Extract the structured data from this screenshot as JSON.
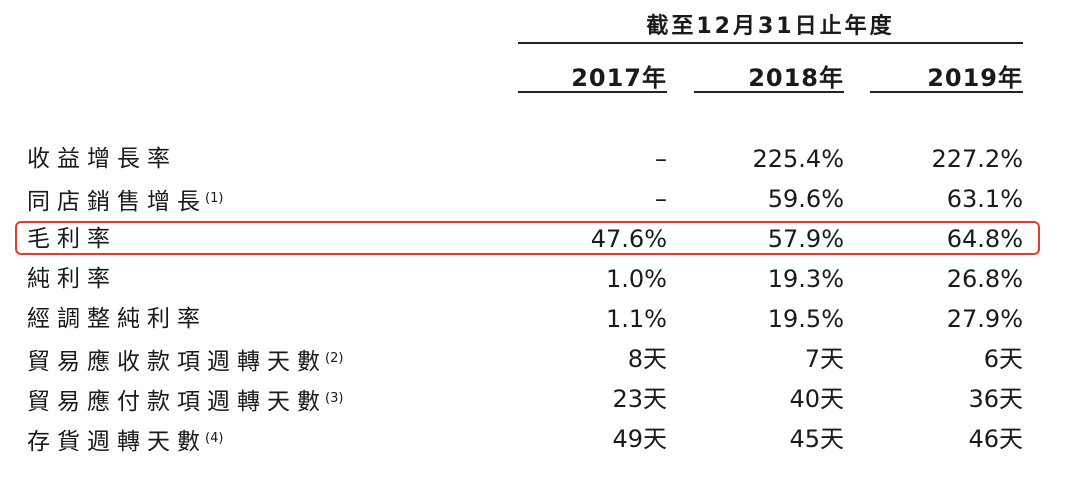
{
  "header": {
    "period": "截至12月31日止年度",
    "years": [
      "2017年",
      "2018年",
      "2019年"
    ]
  },
  "rows": [
    {
      "label": "收益增長率",
      "note": "",
      "values": [
        "–",
        "225.4%",
        "227.2%"
      ]
    },
    {
      "label": "同店銷售增長",
      "note": "(1)",
      "values": [
        "–",
        "59.6%",
        "63.1%"
      ]
    },
    {
      "label": "毛利率",
      "note": "",
      "values": [
        "47.6%",
        "57.9%",
        "64.8%"
      ]
    },
    {
      "label": "純利率",
      "note": "",
      "values": [
        "1.0%",
        "19.3%",
        "26.8%"
      ]
    },
    {
      "label": "經調整純利率",
      "note": "",
      "values": [
        "1.1%",
        "19.5%",
        "27.9%"
      ]
    },
    {
      "label": "貿易應收款項週轉天數",
      "note": "(2)",
      "values": [
        "8天",
        "7天",
        "6天"
      ]
    },
    {
      "label": "貿易應付款項週轉天數",
      "note": "(3)",
      "values": [
        "23天",
        "40天",
        "36天"
      ]
    },
    {
      "label": "存貨週轉天數",
      "note": "(4)",
      "values": [
        "49天",
        "45天",
        "46天"
      ]
    }
  ],
  "highlight_color": "#e53b2c"
}
